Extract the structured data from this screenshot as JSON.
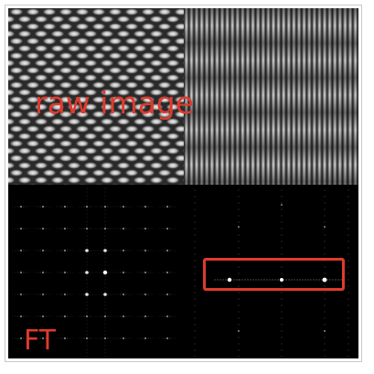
{
  "labels": {
    "raw": "raw image",
    "ft": "FT"
  },
  "colors": {
    "annotation": "#e03a2e",
    "frame": "#c8c8c8",
    "ft_background": "#000000"
  }
}
